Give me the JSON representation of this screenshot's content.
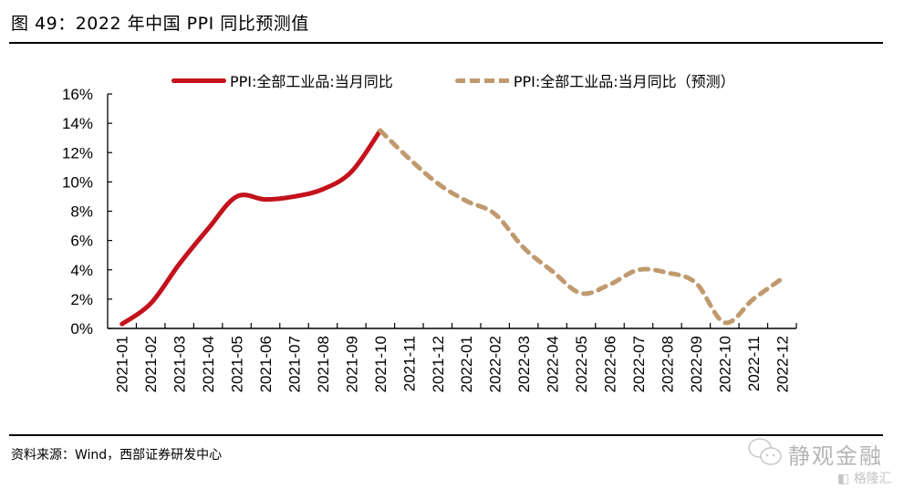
{
  "figure": {
    "title": "图 49：2022 年中国 PPI 同比预测值",
    "source": "资料来源：Wind，西部证券研发中心"
  },
  "watermark": {
    "main": "静观金融",
    "sub": "格隆汇"
  },
  "colors": {
    "actual": "#C3121C",
    "forecast": "#C09A6E",
    "axis": "#000000"
  },
  "chart_data": {
    "type": "line",
    "title": "2022 年中国 PPI 同比预测值",
    "xlabel": "",
    "ylabel": "",
    "ylim": [
      0,
      16
    ],
    "yticks": [
      "0%",
      "2%",
      "4%",
      "6%",
      "8%",
      "10%",
      "12%",
      "14%",
      "16%"
    ],
    "ytick_values": [
      0,
      2,
      4,
      6,
      8,
      10,
      12,
      14,
      16
    ],
    "grid": false,
    "legend_position": "top",
    "categories": [
      "2021-01",
      "2021-02",
      "2021-03",
      "2021-04",
      "2021-05",
      "2021-06",
      "2021-07",
      "2021-08",
      "2021-09",
      "2021-10",
      "2021-11",
      "2021-12",
      "2022-01",
      "2022-02",
      "2022-03",
      "2022-04",
      "2022-05",
      "2022-06",
      "2022-07",
      "2022-08",
      "2022-09",
      "2022-10",
      "2022-11",
      "2022-12"
    ],
    "series": [
      {
        "name": "PPI:全部工业品:当月同比",
        "style": "solid",
        "values": [
          0.3,
          1.7,
          4.4,
          6.8,
          9.0,
          8.8,
          9.0,
          9.5,
          10.7,
          13.5,
          null,
          null,
          null,
          null,
          null,
          null,
          null,
          null,
          null,
          null,
          null,
          null,
          null,
          null
        ]
      },
      {
        "name": "PPI:全部工业品:当月同比（预测）",
        "style": "dashed",
        "values": [
          null,
          null,
          null,
          null,
          null,
          null,
          null,
          null,
          null,
          13.5,
          11.6,
          9.9,
          8.7,
          7.8,
          5.5,
          3.9,
          2.4,
          3.0,
          4.0,
          3.8,
          3.1,
          0.4,
          2.0,
          3.4
        ]
      }
    ]
  }
}
